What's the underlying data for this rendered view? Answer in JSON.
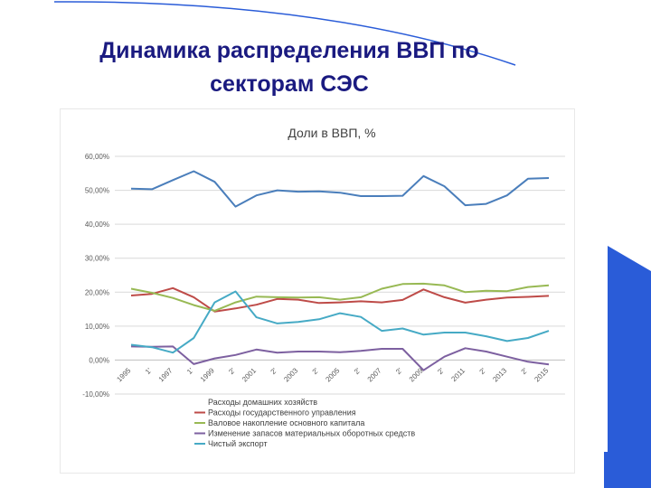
{
  "slide": {
    "title_line1": "Динамика распределения ВВП по",
    "title_line2": "секторам СЭС"
  },
  "colors": {
    "title": "#1a1a80",
    "accent_blue": "#2a5cd8",
    "series": [
      "#4a7ebb",
      "#be4b48",
      "#98b954",
      "#7d60a0",
      "#46aac5"
    ]
  },
  "chart_data": {
    "type": "line",
    "title": "Доли в ВВП, %",
    "x": [
      "1995",
      "1996",
      "1997",
      "1998",
      "1999",
      "2000",
      "2001",
      "2002",
      "2003",
      "2004",
      "2005",
      "2006",
      "2007",
      "2008",
      "2009",
      "2010",
      "2011",
      "2012",
      "2013",
      "2014",
      "2015"
    ],
    "x_tick_labels": [
      "1995",
      "1'",
      "1997",
      "1'",
      "1999",
      "2'",
      "2001",
      "2'",
      "2003",
      "2'",
      "2005",
      "2'",
      "2007",
      "2'",
      "2009",
      "2'",
      "2011",
      "2'",
      "2013",
      "2'",
      "2015"
    ],
    "ylim": [
      -10,
      60
    ],
    "y_ticks": [
      -10,
      0,
      10,
      20,
      30,
      40,
      50,
      60
    ],
    "y_tick_labels": [
      "-10,00%",
      "0,00%",
      "10,00%",
      "20,00%",
      "30,00%",
      "40,00%",
      "50,00%",
      "60,00%"
    ],
    "grid": true,
    "legend_position": "bottom",
    "series": [
      {
        "name": "Расходы домашних хозяйств",
        "values": [
          50.5,
          50.3,
          53,
          55.6,
          52.5,
          45.2,
          48.5,
          50,
          49.6,
          49.7,
          49.3,
          48.3,
          48.3,
          48.4,
          54.2,
          51.2,
          45.6,
          46,
          48.5,
          53.4,
          53.6
        ]
      },
      {
        "name": "Расходы государственного управления",
        "values": [
          19,
          19.5,
          21.2,
          18.5,
          14.3,
          15.2,
          16.3,
          18,
          17.8,
          16.8,
          17,
          17.3,
          17,
          17.7,
          20.8,
          18.5,
          16.9,
          17.8,
          18.4,
          18.6,
          18.9
        ]
      },
      {
        "name": "Валовое накопление основного капитала",
        "values": [
          21,
          19.8,
          18.3,
          16.2,
          14.5,
          17,
          18.7,
          18.5,
          18.4,
          18.5,
          17.8,
          18.5,
          21,
          22.4,
          22.5,
          22,
          20,
          20.4,
          20.3,
          21.5,
          22
        ]
      },
      {
        "name": "Изменение запасов материальных оборотных средств",
        "values": [
          4,
          3.9,
          4,
          -1.2,
          0.5,
          1.5,
          3.1,
          2.2,
          2.5,
          2.5,
          2.3,
          2.7,
          3.3,
          3.3,
          -3,
          1,
          3.5,
          2.5,
          1,
          -0.5,
          -1.3
        ]
      },
      {
        "name": "Чистый экспорт",
        "values": [
          4.5,
          3.8,
          2.2,
          6.5,
          17,
          20.2,
          12.6,
          10.8,
          11.2,
          12,
          13.8,
          12.7,
          8.6,
          9.3,
          7.5,
          8.1,
          8.1,
          7,
          5.6,
          6.5,
          8.6
        ]
      }
    ]
  }
}
